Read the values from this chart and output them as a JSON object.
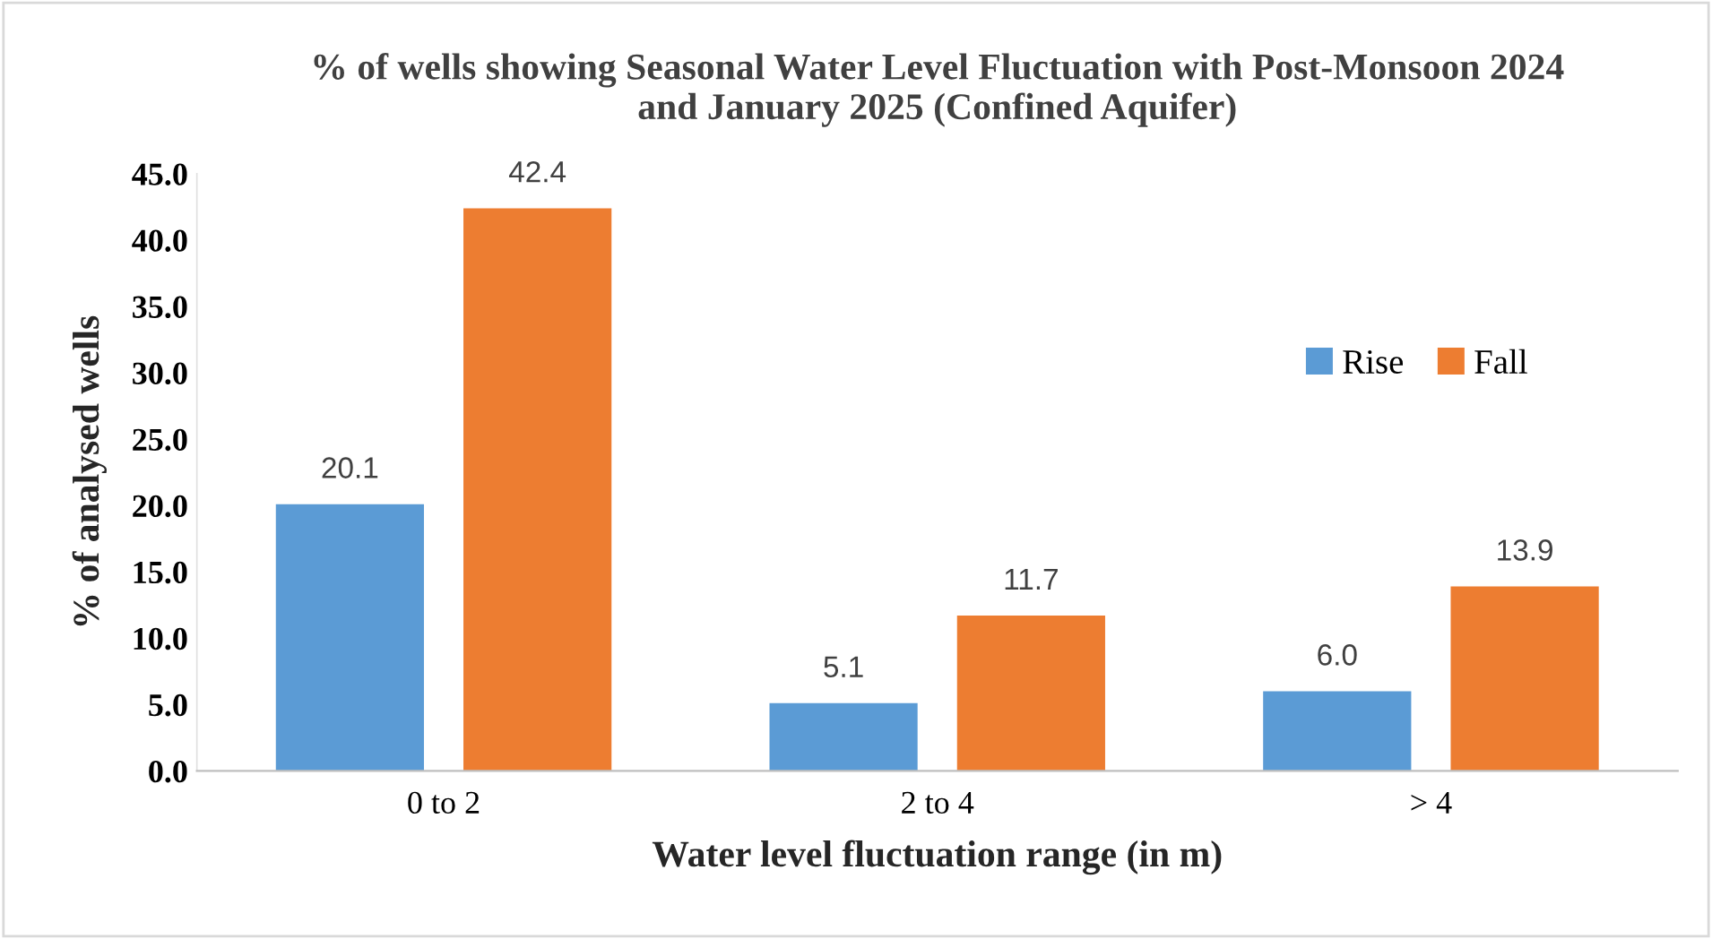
{
  "chart_data": {
    "type": "bar",
    "title": "% of wells showing Seasonal Water Level Fluctuation with Post-Monsoon 2024\nand January 2025 (Confined Aquifer)",
    "xlabel": "Water level fluctuation range (in m)",
    "ylabel": "% of analysed wells",
    "categories": [
      "0 to 2",
      "2 to 4",
      "> 4"
    ],
    "series": [
      {
        "name": "Rise",
        "color": "#5b9bd5",
        "values": [
          20.1,
          5.1,
          6.0
        ],
        "value_labels": [
          "20.1",
          "5.1",
          "6.0"
        ]
      },
      {
        "name": "Fall",
        "color": "#ed7d31",
        "values": [
          42.4,
          11.7,
          13.9
        ],
        "value_labels": [
          "42.4",
          "11.7",
          "13.9"
        ]
      }
    ],
    "ylim": [
      0,
      45
    ],
    "yticks": [
      {
        "value": 0,
        "label": "0.0"
      },
      {
        "value": 5,
        "label": "5.0"
      },
      {
        "value": 10,
        "label": "10.0"
      },
      {
        "value": 15,
        "label": "15.0"
      },
      {
        "value": 20,
        "label": "20.0"
      },
      {
        "value": 25,
        "label": "25.0"
      },
      {
        "value": 30,
        "label": "30.0"
      },
      {
        "value": 35,
        "label": "35.0"
      },
      {
        "value": 40,
        "label": "40.0"
      },
      {
        "value": 45,
        "label": "45.0"
      }
    ],
    "legend": "right",
    "grid": false
  }
}
